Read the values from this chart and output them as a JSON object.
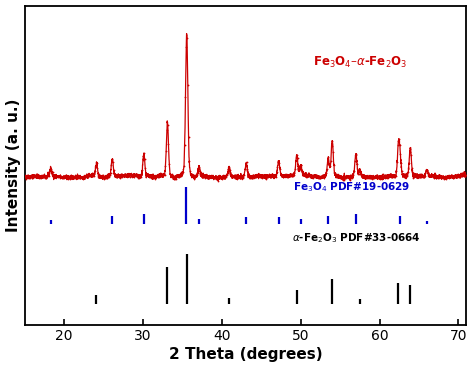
{
  "xlabel": "2 Theta (degrees)",
  "ylabel": "Intensity (a. u.)",
  "xlim": [
    15,
    71
  ],
  "background_color": "#ffffff",
  "fe3o4_label": "Fe$_3$O$_4$ PDF#19-0629",
  "fe2o3_label": "$\\alpha$-Fe$_2$O$_3$ PDF#33-0664",
  "xrd_label": "Fe$_3$O$_4$–$\\alpha$-Fe$_2$O$_3$",
  "fe3o4_color": "#0000CC",
  "fe2o3_color": "#000000",
  "xrd_color": "#CC0000",
  "xrd_label_color": "#CC0000",
  "fe3o4_peaks": [
    18.3,
    26.1,
    30.1,
    35.5,
    37.1,
    43.1,
    47.2,
    50.0,
    53.5,
    57.0,
    62.6,
    66.0
  ],
  "fe3o4_heights": [
    0.1,
    0.22,
    0.28,
    1.0,
    0.12,
    0.18,
    0.18,
    0.12,
    0.22,
    0.28,
    0.22,
    0.09
  ],
  "fe2o3_peaks": [
    24.1,
    33.1,
    35.6,
    40.9,
    49.5,
    54.0,
    57.5,
    62.4,
    63.9
  ],
  "fe2o3_heights": [
    0.18,
    0.75,
    1.0,
    0.12,
    0.28,
    0.5,
    0.1,
    0.42,
    0.38
  ],
  "xticks": [
    20,
    30,
    40,
    50,
    60,
    70
  ],
  "sigma_narrow": 0.13,
  "sigma_wide": 0.35,
  "noise_scale": 0.008,
  "xrd_baseline": 0.0,
  "xrd_scale": 1.0,
  "fe3o4_bar_base": 0.0,
  "fe3o4_bar_scale": 0.28,
  "fe2o3_bar_base": -0.45,
  "fe2o3_bar_scale": 0.38
}
